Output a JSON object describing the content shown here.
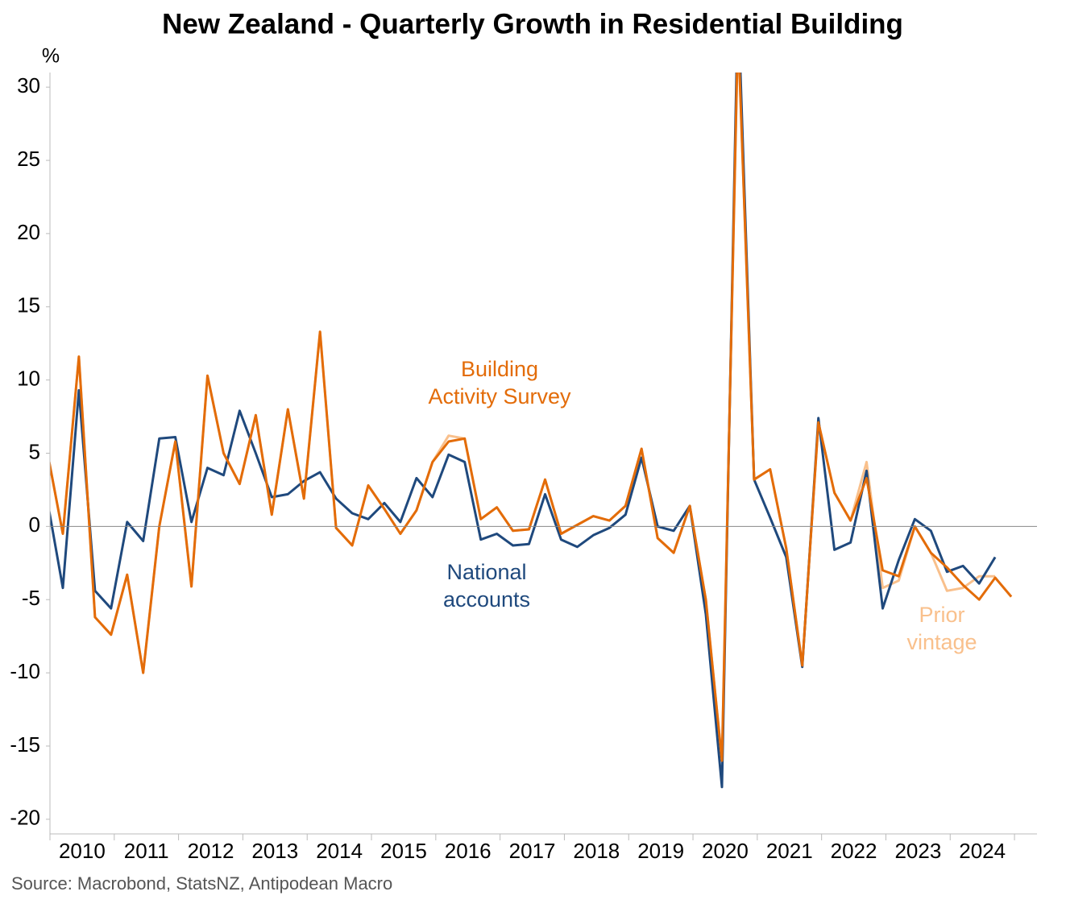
{
  "chart_data": {
    "type": "line",
    "title": "New Zealand - Quarterly Growth in Residential Building",
    "y_label": "%",
    "source": "Source: Macrobond, StatsNZ, Antipodean Macro",
    "x": [
      2009.95,
      2010.2,
      2010.45,
      2010.7,
      2010.95,
      2011.2,
      2011.45,
      2011.7,
      2011.95,
      2012.2,
      2012.45,
      2012.7,
      2012.95,
      2013.2,
      2013.45,
      2013.7,
      2013.95,
      2014.2,
      2014.45,
      2014.7,
      2014.95,
      2015.2,
      2015.45,
      2015.7,
      2015.95,
      2016.2,
      2016.45,
      2016.7,
      2016.95,
      2017.2,
      2017.45,
      2017.7,
      2017.95,
      2018.2,
      2018.45,
      2018.7,
      2018.95,
      2019.2,
      2019.45,
      2019.7,
      2019.95,
      2020.2,
      2020.45,
      2020.7,
      2020.95,
      2021.2,
      2021.45,
      2021.7,
      2021.95,
      2022.2,
      2022.45,
      2022.7,
      2022.95,
      2023.2,
      2023.45,
      2023.7,
      2023.95,
      2024.2,
      2024.45,
      2024.7,
      2024.95
    ],
    "series": [
      {
        "name": "Prior vintage",
        "label_lines": [
          "Prior",
          "vintage"
        ],
        "color": "#f9c08c",
        "values": [
          5.3,
          -0.5,
          11.6,
          -6.2,
          -7.4,
          -3.3,
          -10,
          0,
          5.8,
          -4.1,
          10.3,
          5,
          2.9,
          7.6,
          0.8,
          8,
          1.9,
          13.3,
          -0.1,
          -1.3,
          2.8,
          1.2,
          -0.5,
          1.1,
          4.4,
          6.2,
          6.0,
          0.5,
          1.3,
          -0.3,
          -0.2,
          3.2,
          -0.5,
          0.1,
          0.7,
          0.4,
          1.4,
          5.3,
          -0.8,
          -1.8,
          1.4,
          -5,
          -16,
          34,
          3.2,
          3.9,
          -1.5,
          -9.5,
          7.1,
          2.3,
          0.4,
          4.4,
          -4.2,
          -3.7,
          0,
          -1.8,
          -4.4,
          -4.2,
          -3.4,
          -3.4,
          null
        ]
      },
      {
        "name": "National accounts",
        "label_lines": [
          "National",
          "accounts"
        ],
        "color": "#1f497d",
        "values": [
          2.0,
          -4.2,
          9.3,
          -4.4,
          -5.6,
          0.3,
          -1,
          6,
          6.1,
          0.3,
          4,
          3.5,
          7.9,
          5,
          2,
          2.2,
          3.1,
          3.7,
          1.9,
          0.9,
          0.5,
          1.6,
          0.3,
          3.3,
          2.0,
          4.9,
          4.4,
          -0.9,
          -0.5,
          -1.3,
          -1.2,
          2.2,
          -0.9,
          -1.4,
          -0.6,
          -0.1,
          0.8,
          4.7,
          0,
          -0.3,
          1.4,
          -6,
          -17.8,
          36,
          3.2,
          0.6,
          -2.1,
          -9.6,
          7.4,
          -1.6,
          -1.1,
          3.8,
          -5.6,
          -2.3,
          0.5,
          -0.3,
          -3.1,
          -2.7,
          -3.9,
          -2.1,
          null
        ]
      },
      {
        "name": "Building Activity Survey",
        "label_lines": [
          "Building",
          "Activity Survey"
        ],
        "color": "#e36c09",
        "values": [
          5.3,
          -0.5,
          11.6,
          -6.2,
          -7.4,
          -3.3,
          -10,
          0,
          5.8,
          -4.1,
          10.3,
          5,
          2.9,
          7.6,
          0.8,
          8,
          1.9,
          13.3,
          -0.1,
          -1.3,
          2.8,
          1.2,
          -0.5,
          1.1,
          4.4,
          5.8,
          6,
          0.5,
          1.3,
          -0.3,
          -0.2,
          3.2,
          -0.5,
          0.1,
          0.7,
          0.4,
          1.4,
          5.3,
          -0.8,
          -1.8,
          1.4,
          -5,
          -16,
          34,
          3.2,
          3.9,
          -1.5,
          -9.5,
          7.1,
          2.3,
          0.4,
          3.3,
          -3,
          -3.4,
          0,
          -1.8,
          -2.8,
          -4,
          -5,
          -3.5,
          -4.8
        ]
      }
    ],
    "xlim": [
      2010,
      2025.35
    ],
    "xticks": [
      2010,
      2011,
      2012,
      2013,
      2014,
      2015,
      2016,
      2017,
      2018,
      2019,
      2020,
      2021,
      2022,
      2023,
      2024,
      2025
    ],
    "ylim": [
      -21,
      31
    ],
    "yticks": [
      -20,
      -15,
      -10,
      -5,
      0,
      5,
      10,
      15,
      20,
      25,
      30
    ],
    "zero_line": true
  }
}
